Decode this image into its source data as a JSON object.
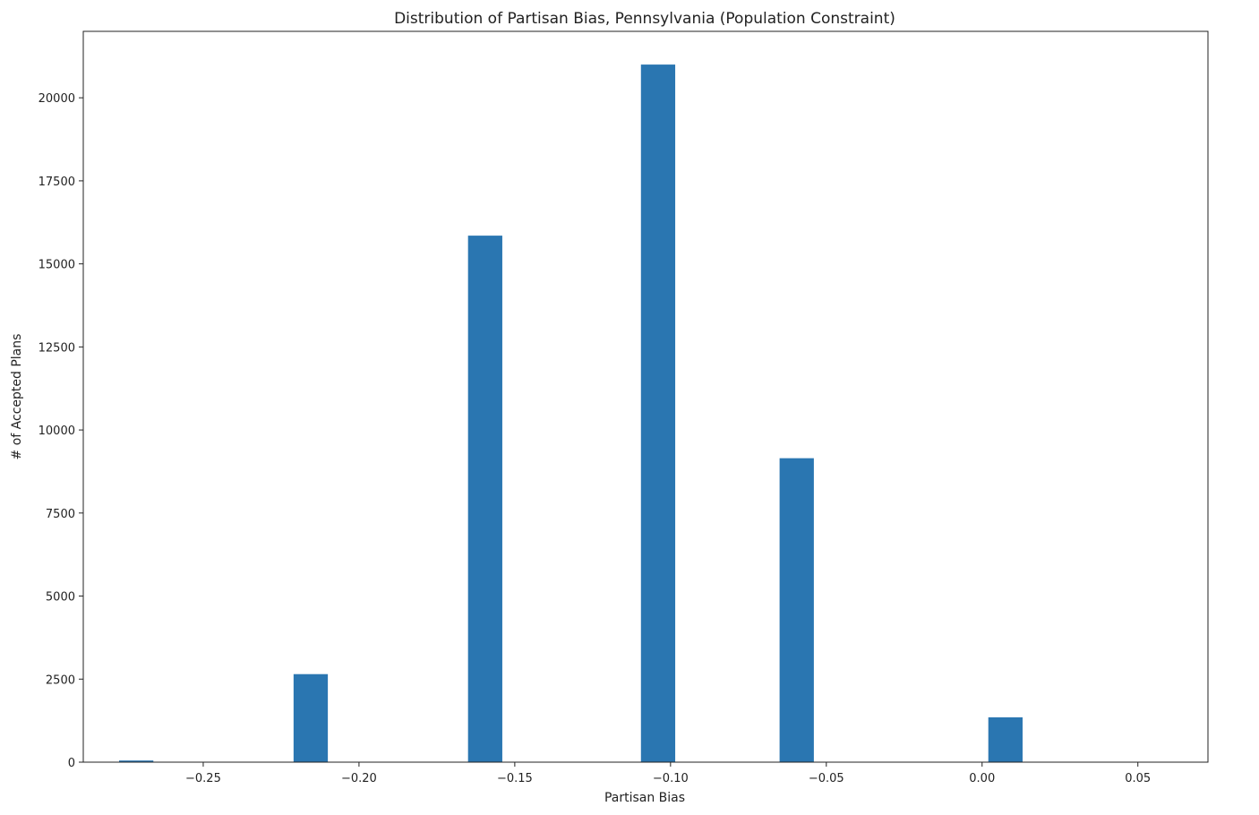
{
  "chart_data": {
    "type": "bar",
    "title": "Distribution of Partisan Bias, Pennsylvania (Population Constraint)",
    "xlabel": "Partisan Bias",
    "ylabel": "# of Accepted Plans",
    "xlim": [
      -0.2885,
      0.0725
    ],
    "ylim": [
      0,
      22000
    ],
    "bin_width": 0.011,
    "x_ticks": [
      -0.25,
      -0.2,
      -0.15,
      -0.1,
      -0.05,
      0.0,
      0.05
    ],
    "x_tick_labels": [
      "−0.25",
      "−0.20",
      "−0.15",
      "−0.10",
      "−0.05",
      "0.00",
      "0.05"
    ],
    "y_ticks": [
      0,
      2500,
      5000,
      7500,
      10000,
      12500,
      15000,
      17500,
      20000
    ],
    "y_tick_labels": [
      "0",
      "2500",
      "5000",
      "7500",
      "10000",
      "12500",
      "15000",
      "17500",
      "20000"
    ],
    "bins": [
      {
        "x": -0.2715,
        "value": 50
      },
      {
        "x": -0.2155,
        "value": 2650
      },
      {
        "x": -0.1595,
        "value": 15850
      },
      {
        "x": -0.104,
        "value": 21000
      },
      {
        "x": -0.0595,
        "value": 9150
      },
      {
        "x": 0.0075,
        "value": 1350
      }
    ],
    "bar_color": "#2a76b1",
    "grid": false,
    "legend": false
  }
}
